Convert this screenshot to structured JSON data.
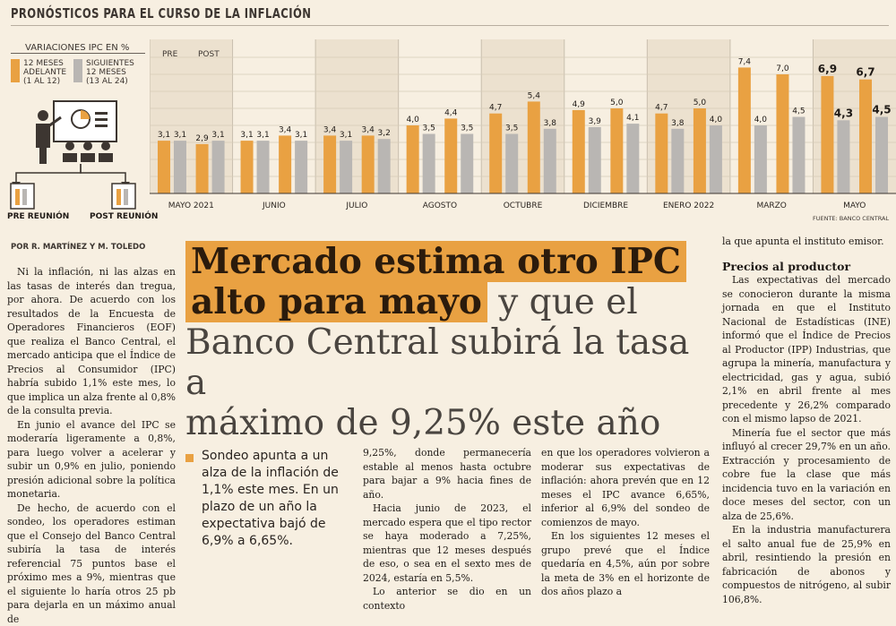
{
  "header": {
    "title": "PRONÓSTICOS PARA EL CURSO DE LA INFLACIÓN"
  },
  "legend": {
    "title": "VARIACIONES IPC EN %",
    "orange_label": [
      "12 MESES",
      "ADELANTE",
      "(1 AL 12)"
    ],
    "gray_label": [
      "SIGUIENTES",
      "12 MESES",
      "(13 AL 24)"
    ],
    "pre_label": "PRE REUNIÓN",
    "post_label": "POST REUNIÓN"
  },
  "chart_labels": {
    "pre": "PRE",
    "post": "POST",
    "source": "FUENTE: BANCO CENTRAL"
  },
  "chart_data": {
    "type": "bar",
    "colors": {
      "orange": "#e9a142",
      "gray": "#b9b6b3",
      "bold_gray": "#9a9794"
    },
    "months": [
      "MAYO 2021",
      "JUNIO",
      "JULIO",
      "AGOSTO",
      "OCTUBRE",
      "DICIEMBRE",
      "ENERO 2022",
      "MARZO",
      "MAYO"
    ],
    "series": [
      {
        "name": "12 MESES ADELANTE (1 AL 12)",
        "values": [
          3.1,
          2.9,
          3.1,
          3.4,
          3.4,
          3.4,
          4.0,
          4.4,
          4.7,
          5.4,
          4.9,
          5.0,
          4.7,
          5.0,
          7.4,
          7.0,
          6.9,
          6.7
        ]
      },
      {
        "name": "SIGUIENTES 12 MESES (13 AL 24)",
        "values": [
          3.1,
          3.1,
          3.1,
          3.1,
          3.1,
          3.2,
          3.5,
          3.5,
          3.5,
          3.8,
          3.9,
          4.1,
          3.8,
          4.0,
          4.0,
          4.5,
          4.3,
          4.5
        ]
      }
    ],
    "value_labels_orange": [
      "3,1",
      "2,9",
      "3,1",
      "3,4",
      "3,4",
      "3,4",
      "4,0",
      "4,4",
      "4,7",
      "5,4",
      "4,9",
      "5,0",
      "4,7",
      "5,0",
      "7,4",
      "7,0",
      "6,9",
      "6,7"
    ],
    "value_labels_gray": [
      "3,1",
      "3,1",
      "3,1",
      "3,1",
      "3,1",
      "3,2",
      "3,5",
      "3,5",
      "3,5",
      "3,8",
      "3,9",
      "4,1",
      "3,8",
      "4,0",
      "4,0",
      "4,5",
      "4,3",
      "4,5"
    ],
    "ylim": [
      0,
      8
    ]
  },
  "article": {
    "byline": "POR R. MARTÍNEZ Y M. TOLEDO",
    "headline_hl1": "Mercado estima otro IPC",
    "headline_hl2": "alto para mayo",
    "headline_rest1": " y que el",
    "headline_rest2": "Banco Central subirá la tasa a",
    "headline_rest3": "máximo de 9,25% este año",
    "bullet": "Sondeo apunta a un alza de la inflación de 1,1% este mes. En un plazo de un año la expectativa bajó de 6,9% a 6,65%.",
    "col1_p1": "Ni la inflación, ni las alzas en las tasas de interés dan tregua, por ahora. De acuerdo con los resultados de la Encuesta de Operadores Financieros (EOF) que realiza el Banco Central, el mercado anticipa que el Índice de Precios al Consumidor (IPC) habría subido 1,1% este mes, lo que implica un alza frente al 0,8% de la consulta previa.",
    "col1_p2": "En junio el avance del IPC se moderaría ligeramente a 0,8%, para luego volver a acelerar y subir un 0,9% en julio, poniendo presión adicional sobre la política monetaria.",
    "col1_p3": "De hecho, de acuerdo con el sondeo, los operadores estiman que el Consejo del Banco Central subiría la tasa de interés referencial 75 puntos base el próximo mes a 9%, mientras que el siguiente lo haría otros 25 pb para dejarla en un máximo anual de",
    "col2_p1": "9,25%, donde permanecería estable al menos hasta octubre para bajar a 9% hacia fines de año.",
    "col2_p2": "Hacia junio de 2023, el mercado espera que el tipo rector se haya moderado a 7,25%, mientras que 12 meses después de eso, o sea en el sexto mes de 2024, estaría en 5,5%.",
    "col2_p3": "Lo anterior se dio en un contexto",
    "col3_p1": "en que los operadores volvieron a moderar sus expectativas de inflación: ahora prevén que en 12 meses el IPC avance 6,65%, inferior al 6,9% del sondeo de comienzos de mayo.",
    "col3_p2": "En los siguientes 12 meses el grupo prevé que el Índice quedaría en 4,5%, aún por sobre la meta de 3% en el horizonte de dos años plazo a",
    "col4_p0": "la que apunta el instituto emisor.",
    "col4_subhead": "Precios al productor",
    "col4_p1": "Las expectativas del mercado se conocieron durante la misma jornada en que el Instituto Nacional de Estadísticas (INE) informó que el Índice de Precios al Productor (IPP) Industrias, que agrupa la minería, manufactura y electricidad, gas y agua, subió 2,1% en abril frente al mes precedente y 26,2% comparado con el mismo lapso de 2021.",
    "col4_p2": "Minería fue el sector que más influyó al crecer 29,7% en un año. Extracción y procesamiento de cobre fue la clase que más incidencia tuvo en la variación en doce meses del sector, con un alza de 25,6%.",
    "col4_p3": "En la industria manufacturera el salto anual fue de 25,9% en abril, resintiendo la presión en fabricación de abonos y compuestos de nitrógeno, al subir 106,8%."
  }
}
